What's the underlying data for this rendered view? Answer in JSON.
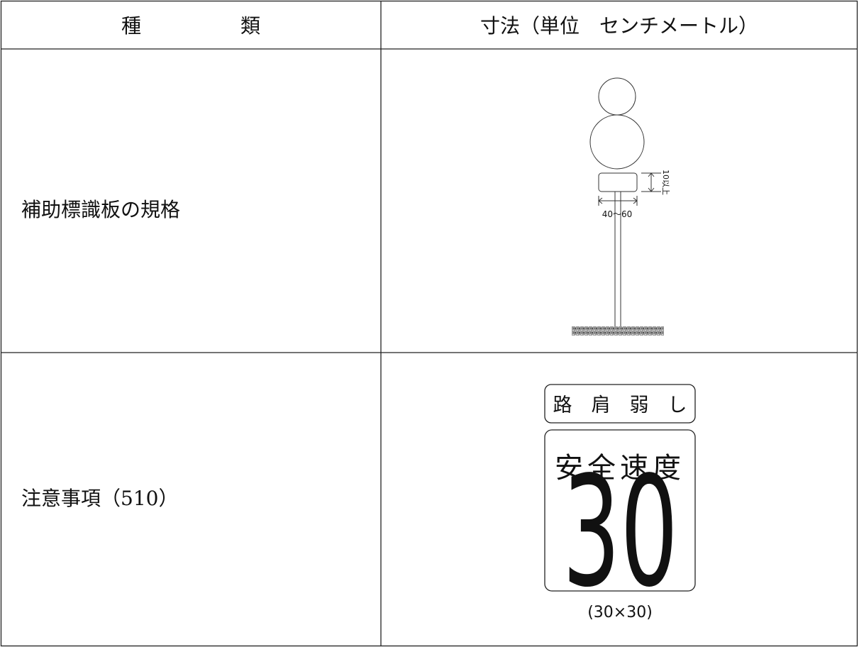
{
  "table": {
    "header": [
      "種　　　　　類",
      "寸法（単位　センチメートル）"
    ],
    "rows": [
      {
        "label": "補助標識板の規格",
        "figure": {
          "height_label": "10以上",
          "width_label": "40〜60"
        }
      },
      {
        "label": "注意事項（510）",
        "figure": {
          "top_plate": "路　肩　弱　し",
          "main_title": "安全速度",
          "main_number": "30",
          "size_label": "(30×30)"
        }
      }
    ]
  }
}
